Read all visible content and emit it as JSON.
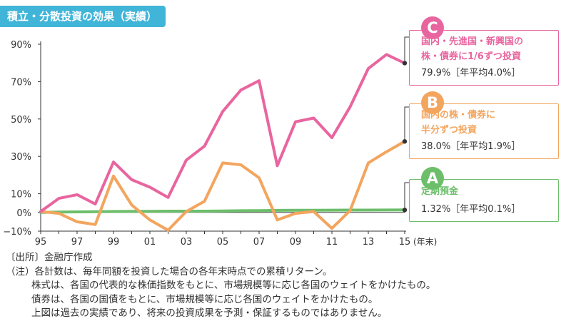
{
  "title": "積立・分散投資の効果（実績）",
  "chart_data": {
    "type": "line",
    "x": [
      "1995",
      "1996",
      "1997",
      "1998",
      "1999",
      "2000",
      "2001",
      "2002",
      "2003",
      "2004",
      "2005",
      "2006",
      "2007",
      "2008",
      "2009",
      "2010",
      "2011",
      "2012",
      "2013",
      "2014",
      "2015"
    ],
    "xtick_labels": [
      "95",
      "97",
      "99",
      "01",
      "03",
      "05",
      "07",
      "09",
      "11",
      "13",
      "15"
    ],
    "xaxis_unit": "(年末)",
    "ylim": [
      -10,
      90
    ],
    "yticks": [
      {
        "value": 90,
        "label": "90%"
      },
      {
        "value": 70,
        "label": "70%"
      },
      {
        "value": 50,
        "label": "50%"
      },
      {
        "value": 30,
        "label": "30%"
      },
      {
        "value": 10,
        "label": "10%"
      },
      {
        "value": 0,
        "label": "0%"
      },
      {
        "value": -10,
        "label": "−10%"
      }
    ],
    "grid": false,
    "series": [
      {
        "name": "国内・先進国・新興国の株・債券に1/6ずつ投資",
        "color": "#e8659f",
        "values": [
          0.5,
          7.5,
          9.5,
          4.5,
          27.0,
          17.5,
          13.5,
          8.0,
          28.0,
          35.5,
          54.0,
          65.5,
          70.5,
          25.0,
          48.5,
          50.5,
          40.0,
          56.5,
          77.0,
          84.5,
          79.9
        ]
      },
      {
        "name": "国内の株・債券に半分ずつ投資",
        "color": "#f3a55e",
        "values": [
          0.5,
          -0.5,
          -5.0,
          -6.5,
          19.5,
          4.0,
          -4.0,
          -9.5,
          0.5,
          6.0,
          26.5,
          25.5,
          18.5,
          -4.0,
          -0.5,
          0.5,
          -8.5,
          1.0,
          26.5,
          32.5,
          38.0
        ]
      },
      {
        "name": "定期預金",
        "color": "#6dbe6b",
        "values": [
          0.0,
          0.2,
          0.3,
          0.4,
          0.5,
          0.6,
          0.6,
          0.7,
          0.7,
          0.7,
          0.8,
          0.9,
          1.0,
          1.1,
          1.15,
          1.2,
          1.22,
          1.25,
          1.27,
          1.3,
          1.32
        ]
      }
    ]
  },
  "callouts": [
    {
      "letter": "C",
      "color": "#e8659f",
      "line1": "国内・先進国・新興国の",
      "line2": "株・債券に1/6ずつ投資",
      "value": "79.9%［年平均4.0%］"
    },
    {
      "letter": "B",
      "color": "#f3a55e",
      "line1": "国内の株・債券に",
      "line2": "半分ずつ投資",
      "value": "38.0%［年平均1.9%］"
    },
    {
      "letter": "A",
      "color": "#6dbe6b",
      "line1": "定期預金",
      "value": "1.32%［年平均0.1%］"
    }
  ],
  "notes": [
    "〔出所〕金融庁作成",
    "（注）各計数は、毎年同額を投資した場合の各年末時点での累積リターン。",
    "株式は、各国の代表的な株価指数をもとに、市場規模等に応じ各国のウェイトをかけたもの。",
    "債券は、各国の国債をもとに、市場規模等に応じ各国のウェイトをかけたもの。",
    "上図は過去の実績であり、将来の投資成果を予測・保証するものではありません。"
  ]
}
